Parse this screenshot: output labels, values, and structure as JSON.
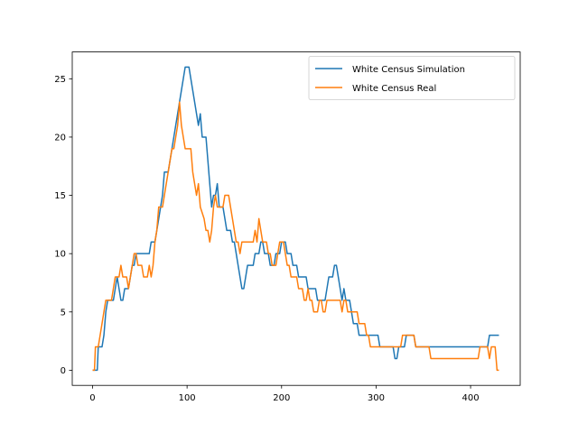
{
  "chart_data": {
    "type": "line",
    "title": "",
    "xlabel": "",
    "ylabel": "",
    "xlim": [
      -21.5,
      452.5
    ],
    "ylim": [
      -1.3,
      27.3
    ],
    "xticks": [
      0,
      100,
      200,
      300,
      400
    ],
    "yticks": [
      0,
      5,
      10,
      15,
      20,
      25
    ],
    "xtick_labels": [
      "0",
      "100",
      "200",
      "300",
      "400"
    ],
    "ytick_labels": [
      "0",
      "5",
      "10",
      "15",
      "20",
      "25"
    ],
    "grid": false,
    "legend_position": "top-right",
    "series": [
      {
        "name": "White Census Simulation",
        "color": "#1f77b4",
        "points": [
          [
            0,
            0
          ],
          [
            5,
            0
          ],
          [
            6,
            2
          ],
          [
            10,
            2
          ],
          [
            12,
            3
          ],
          [
            14,
            5
          ],
          [
            16,
            6
          ],
          [
            22,
            6
          ],
          [
            24,
            7
          ],
          [
            26,
            8
          ],
          [
            28,
            7
          ],
          [
            30,
            6
          ],
          [
            32,
            6
          ],
          [
            34,
            7
          ],
          [
            38,
            7
          ],
          [
            40,
            8
          ],
          [
            42,
            9
          ],
          [
            44,
            9
          ],
          [
            46,
            10
          ],
          [
            60,
            10
          ],
          [
            62,
            11
          ],
          [
            66,
            11
          ],
          [
            68,
            12
          ],
          [
            70,
            13
          ],
          [
            72,
            14
          ],
          [
            74,
            15
          ],
          [
            76,
            17
          ],
          [
            80,
            17
          ],
          [
            82,
            18
          ],
          [
            84,
            19
          ],
          [
            86,
            20
          ],
          [
            88,
            21
          ],
          [
            90,
            22
          ],
          [
            92,
            23
          ],
          [
            94,
            24
          ],
          [
            96,
            25
          ],
          [
            98,
            26
          ],
          [
            102,
            26
          ],
          [
            104,
            25
          ],
          [
            106,
            24
          ],
          [
            108,
            23
          ],
          [
            110,
            22
          ],
          [
            112,
            21
          ],
          [
            114,
            22
          ],
          [
            116,
            20
          ],
          [
            120,
            20
          ],
          [
            122,
            18
          ],
          [
            124,
            16
          ],
          [
            126,
            14
          ],
          [
            128,
            15
          ],
          [
            130,
            15
          ],
          [
            132,
            16
          ],
          [
            134,
            14
          ],
          [
            136,
            14
          ],
          [
            138,
            14
          ],
          [
            140,
            13
          ],
          [
            142,
            12
          ],
          [
            146,
            12
          ],
          [
            148,
            11
          ],
          [
            150,
            11
          ],
          [
            152,
            10
          ],
          [
            154,
            9
          ],
          [
            156,
            8
          ],
          [
            158,
            7
          ],
          [
            160,
            7
          ],
          [
            162,
            8
          ],
          [
            164,
            9
          ],
          [
            170,
            9
          ],
          [
            172,
            10
          ],
          [
            176,
            10
          ],
          [
            178,
            11
          ],
          [
            180,
            11
          ],
          [
            182,
            10
          ],
          [
            186,
            10
          ],
          [
            188,
            9
          ],
          [
            192,
            9
          ],
          [
            194,
            10
          ],
          [
            198,
            10
          ],
          [
            200,
            11
          ],
          [
            204,
            11
          ],
          [
            206,
            10
          ],
          [
            210,
            10
          ],
          [
            212,
            9
          ],
          [
            216,
            9
          ],
          [
            218,
            8
          ],
          [
            226,
            8
          ],
          [
            228,
            7
          ],
          [
            236,
            7
          ],
          [
            238,
            6
          ],
          [
            246,
            6
          ],
          [
            248,
            7
          ],
          [
            250,
            8
          ],
          [
            254,
            8
          ],
          [
            256,
            9
          ],
          [
            258,
            9
          ],
          [
            260,
            8
          ],
          [
            262,
            7
          ],
          [
            264,
            6
          ],
          [
            266,
            7
          ],
          [
            268,
            6
          ],
          [
            272,
            6
          ],
          [
            274,
            5
          ],
          [
            276,
            4
          ],
          [
            280,
            4
          ],
          [
            282,
            3
          ],
          [
            302,
            3
          ],
          [
            304,
            2
          ],
          [
            318,
            2
          ],
          [
            320,
            1
          ],
          [
            322,
            1
          ],
          [
            324,
            2
          ],
          [
            330,
            2
          ],
          [
            332,
            3
          ],
          [
            340,
            3
          ],
          [
            342,
            2
          ],
          [
            418,
            2
          ],
          [
            420,
            3
          ],
          [
            430,
            3
          ]
        ]
      },
      {
        "name": "White Census Real",
        "color": "#ff7f0e",
        "points": [
          [
            0,
            0
          ],
          [
            2,
            0
          ],
          [
            3,
            2
          ],
          [
            6,
            2
          ],
          [
            8,
            3
          ],
          [
            10,
            4
          ],
          [
            12,
            5
          ],
          [
            14,
            6
          ],
          [
            20,
            6
          ],
          [
            22,
            7
          ],
          [
            24,
            8
          ],
          [
            28,
            8
          ],
          [
            30,
            9
          ],
          [
            32,
            8
          ],
          [
            36,
            8
          ],
          [
            38,
            7
          ],
          [
            40,
            8
          ],
          [
            42,
            9
          ],
          [
            44,
            10
          ],
          [
            46,
            10
          ],
          [
            48,
            9
          ],
          [
            52,
            9
          ],
          [
            54,
            8
          ],
          [
            58,
            8
          ],
          [
            60,
            9
          ],
          [
            62,
            8
          ],
          [
            64,
            9
          ],
          [
            66,
            11
          ],
          [
            68,
            12
          ],
          [
            70,
            14
          ],
          [
            74,
            14
          ],
          [
            76,
            15
          ],
          [
            78,
            16
          ],
          [
            80,
            17
          ],
          [
            82,
            18
          ],
          [
            84,
            19
          ],
          [
            86,
            19
          ],
          [
            88,
            20
          ],
          [
            90,
            21
          ],
          [
            92,
            23
          ],
          [
            94,
            21
          ],
          [
            96,
            20
          ],
          [
            98,
            19
          ],
          [
            104,
            19
          ],
          [
            106,
            17
          ],
          [
            108,
            16
          ],
          [
            110,
            15
          ],
          [
            112,
            16
          ],
          [
            114,
            14
          ],
          [
            118,
            13
          ],
          [
            120,
            12
          ],
          [
            122,
            12
          ],
          [
            124,
            11
          ],
          [
            126,
            12
          ],
          [
            128,
            14
          ],
          [
            130,
            15
          ],
          [
            132,
            14
          ],
          [
            134,
            14
          ],
          [
            138,
            14
          ],
          [
            140,
            15
          ],
          [
            144,
            15
          ],
          [
            146,
            14
          ],
          [
            148,
            13
          ],
          [
            150,
            12
          ],
          [
            152,
            11
          ],
          [
            154,
            11
          ],
          [
            156,
            10
          ],
          [
            158,
            11
          ],
          [
            160,
            11
          ],
          [
            162,
            11
          ],
          [
            166,
            11
          ],
          [
            168,
            11
          ],
          [
            170,
            11
          ],
          [
            172,
            12
          ],
          [
            174,
            11
          ],
          [
            176,
            13
          ],
          [
            178,
            12
          ],
          [
            180,
            11
          ],
          [
            184,
            11
          ],
          [
            186,
            10
          ],
          [
            188,
            10
          ],
          [
            190,
            9
          ],
          [
            194,
            9
          ],
          [
            196,
            10
          ],
          [
            198,
            11
          ],
          [
            202,
            11
          ],
          [
            204,
            10
          ],
          [
            206,
            9
          ],
          [
            208,
            9
          ],
          [
            210,
            8
          ],
          [
            216,
            8
          ],
          [
            218,
            7
          ],
          [
            222,
            7
          ],
          [
            224,
            6
          ],
          [
            226,
            6
          ],
          [
            228,
            7
          ],
          [
            230,
            6
          ],
          [
            232,
            6
          ],
          [
            234,
            5
          ],
          [
            238,
            5
          ],
          [
            240,
            6
          ],
          [
            242,
            6
          ],
          [
            244,
            5
          ],
          [
            246,
            5
          ],
          [
            248,
            6
          ],
          [
            262,
            6
          ],
          [
            264,
            5
          ],
          [
            266,
            6
          ],
          [
            268,
            6
          ],
          [
            270,
            5
          ],
          [
            280,
            5
          ],
          [
            282,
            4
          ],
          [
            288,
            4
          ],
          [
            290,
            3
          ],
          [
            292,
            3
          ],
          [
            294,
            2
          ],
          [
            302,
            2
          ],
          [
            304,
            2
          ],
          [
            306,
            2
          ],
          [
            308,
            2
          ],
          [
            310,
            2
          ],
          [
            312,
            2
          ],
          [
            318,
            2
          ],
          [
            320,
            2
          ],
          [
            322,
            2
          ],
          [
            326,
            2
          ],
          [
            328,
            3
          ],
          [
            334,
            3
          ],
          [
            336,
            3
          ],
          [
            338,
            3
          ],
          [
            340,
            3
          ],
          [
            342,
            2
          ],
          [
            356,
            2
          ],
          [
            358,
            1
          ],
          [
            398,
            1
          ],
          [
            408,
            1
          ],
          [
            410,
            2
          ],
          [
            412,
            2
          ],
          [
            418,
            2
          ],
          [
            420,
            1
          ],
          [
            422,
            2
          ],
          [
            426,
            2
          ],
          [
            428,
            0
          ],
          [
            430,
            0
          ]
        ]
      }
    ]
  }
}
